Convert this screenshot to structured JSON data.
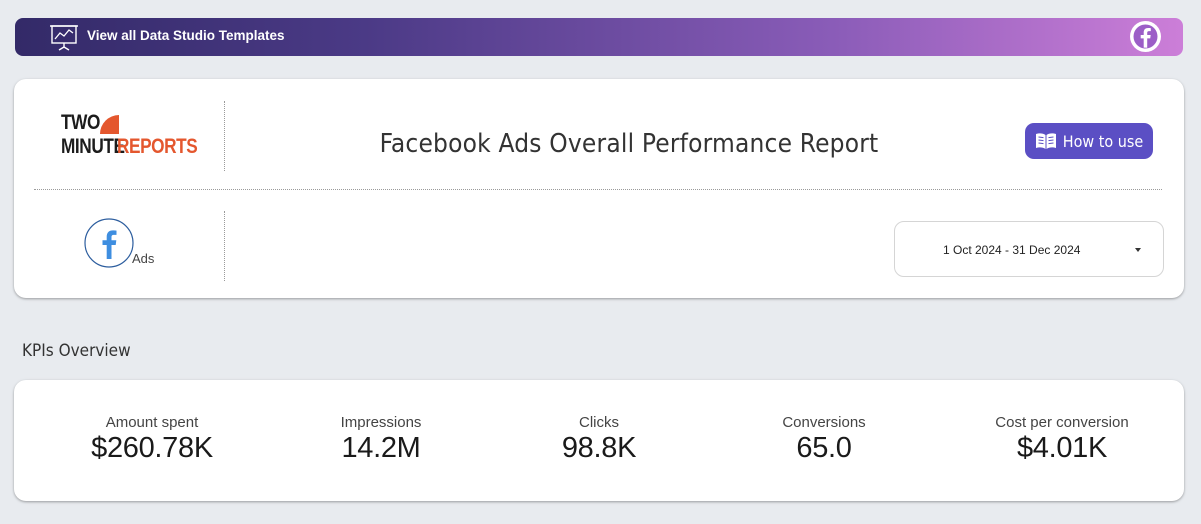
{
  "banner": {
    "label": "View all Data Studio Templates",
    "gradient_start": "#332a68",
    "gradient_end": "#cc7ed8",
    "left_icon": "presentation-chart-icon",
    "right_icon": "facebook-icon"
  },
  "header": {
    "logo": {
      "line1": "TWO",
      "line2_a": "MINUTE",
      "line2_b": "REPORTS",
      "accent": "#e4572e"
    },
    "title": "Facebook Ads Overall Performance Report",
    "how_to_use": {
      "label": "How to use",
      "icon": "book-icon",
      "color": "#5b4fc4"
    },
    "source": {
      "icon": "facebook-icon",
      "label": "Ads"
    },
    "date_range": {
      "value": "1 Oct 2024 - 31 Dec 2024",
      "icon": "caret-down-icon"
    }
  },
  "kpi_section": {
    "title": "KPIs Overview",
    "items": [
      {
        "label": "Amount spent",
        "value": "$260.78K"
      },
      {
        "label": "Impressions",
        "value": "14.2M"
      },
      {
        "label": "Clicks",
        "value": "98.8K"
      },
      {
        "label": "Conversions",
        "value": "65.0"
      },
      {
        "label": "Cost per conversion",
        "value": "$4.01K"
      }
    ]
  }
}
